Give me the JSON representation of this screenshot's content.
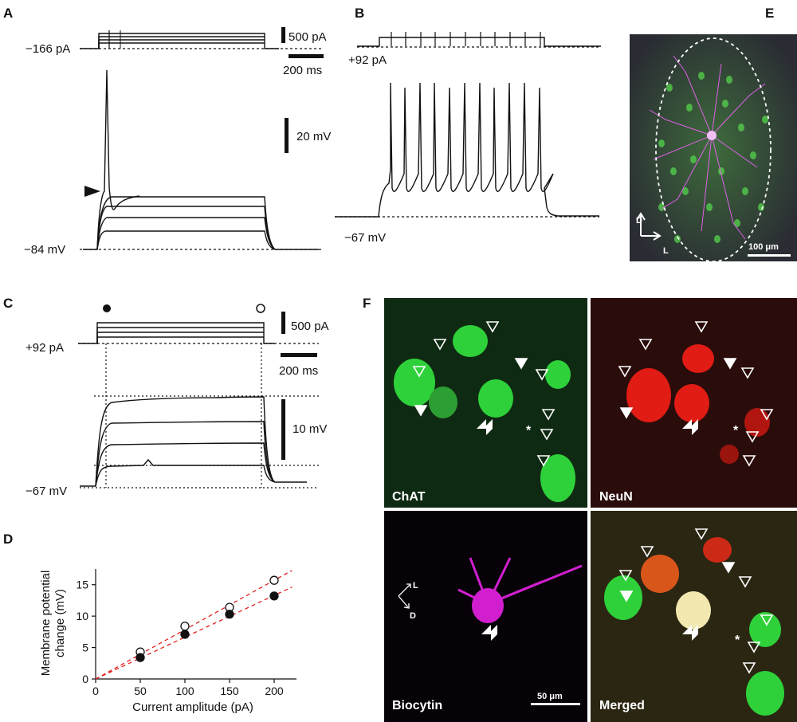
{
  "panels": {
    "A": {
      "label": "A",
      "stim_baseline": "−166 pA",
      "scale_current": "500 pA",
      "scale_time": "200 ms",
      "scale_voltage": "20 mV",
      "baseline_vm": "−84 mV"
    },
    "B": {
      "label": "B",
      "stim_baseline": "+92 pA",
      "baseline_vm": "−67 mV"
    },
    "C": {
      "label": "C",
      "stim_baseline": "+92 pA",
      "scale_current": "500 pA",
      "scale_time": "200 ms",
      "scale_voltage": "10 mV",
      "baseline_vm": "−67 mV"
    },
    "D": {
      "label": "D"
    },
    "E": {
      "label": "E",
      "axis_d": "D",
      "axis_l": "L",
      "scale_bar": "100 μm"
    },
    "F": {
      "label": "F",
      "images": [
        {
          "label": "ChAT",
          "color": "#1fae2a"
        },
        {
          "label": "NeuN",
          "color": "#c8140f"
        },
        {
          "label": "Biocytin",
          "color": "#d11fd0"
        },
        {
          "label": "Merged",
          "color": "#8a7a1c"
        }
      ],
      "asterisk": "*",
      "axis_l": "L",
      "axis_d": "D",
      "scale_bar": "50 μm"
    }
  },
  "chart_data": {
    "type": "scatter",
    "xlabel": "Current amplitude (pA)",
    "ylabel": "Membrane potential change (mV)",
    "ylabel_lines": [
      "Membrane potential",
      "change (mV)"
    ],
    "xlim": [
      0,
      225
    ],
    "ylim": [
      0,
      17.5
    ],
    "xticks": [
      0,
      50,
      100,
      150,
      200
    ],
    "yticks": [
      0,
      5,
      10,
      15
    ],
    "series": [
      {
        "marker": "open",
        "x": [
          50,
          100,
          150,
          200
        ],
        "y": [
          4.3,
          8.4,
          11.4,
          15.7
        ]
      },
      {
        "marker": "filled",
        "x": [
          50,
          100,
          150,
          200
        ],
        "y": [
          3.4,
          7.1,
          10.3,
          13.2
        ]
      }
    ],
    "fit_lines": [
      {
        "slope": 0.0785,
        "intercept": 0,
        "color": "#e02020",
        "style": "dashed"
      },
      {
        "slope": 0.0665,
        "intercept": 0,
        "color": "#e02020",
        "style": "dashed"
      }
    ],
    "grid": false
  }
}
